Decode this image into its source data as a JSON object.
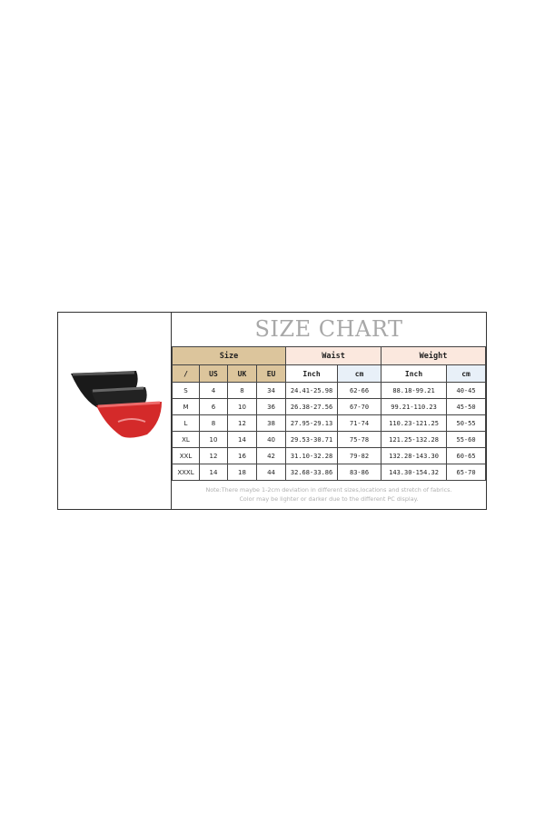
{
  "title": "SIZE CHART",
  "groups": {
    "size": "Size",
    "waist": "Waist",
    "weight": "Weight"
  },
  "subheaders": [
    "/",
    "US",
    "UK",
    "EU",
    "Inch",
    "cm",
    "Inch",
    "cm"
  ],
  "rows": [
    [
      "S",
      "4",
      "8",
      "34",
      "24.41-25.98",
      "62-66",
      "88.18-99.21",
      "40-45"
    ],
    [
      "M",
      "6",
      "10",
      "36",
      "26.38-27.56",
      "67-70",
      "99.21-110.23",
      "45-50"
    ],
    [
      "L",
      "8",
      "12",
      "38",
      "27.95-29.13",
      "71-74",
      "110.23-121.25",
      "50-55"
    ],
    [
      "XL",
      "10",
      "14",
      "40",
      "29.53-30.71",
      "75-78",
      "121.25-132.28",
      "55-60"
    ],
    [
      "XXL",
      "12",
      "16",
      "42",
      "31.10-32.28",
      "79-82",
      "132.28-143.30",
      "60-65"
    ],
    [
      "XXXL",
      "14",
      "18",
      "44",
      "32.68-33.86",
      "83-86",
      "143.30-154.32",
      "65-70"
    ]
  ],
  "note": [
    "Note:There maybe 1-2cm deviation in different sizes,locations and stretch of fabrics.",
    "Color may be lighter or darker due to the different PC display."
  ],
  "colors": {
    "size_header": "#dcc59c",
    "group_header": "#fbe8de",
    "cm_column": "#e8f0f8",
    "title": "#a8a8a8"
  }
}
